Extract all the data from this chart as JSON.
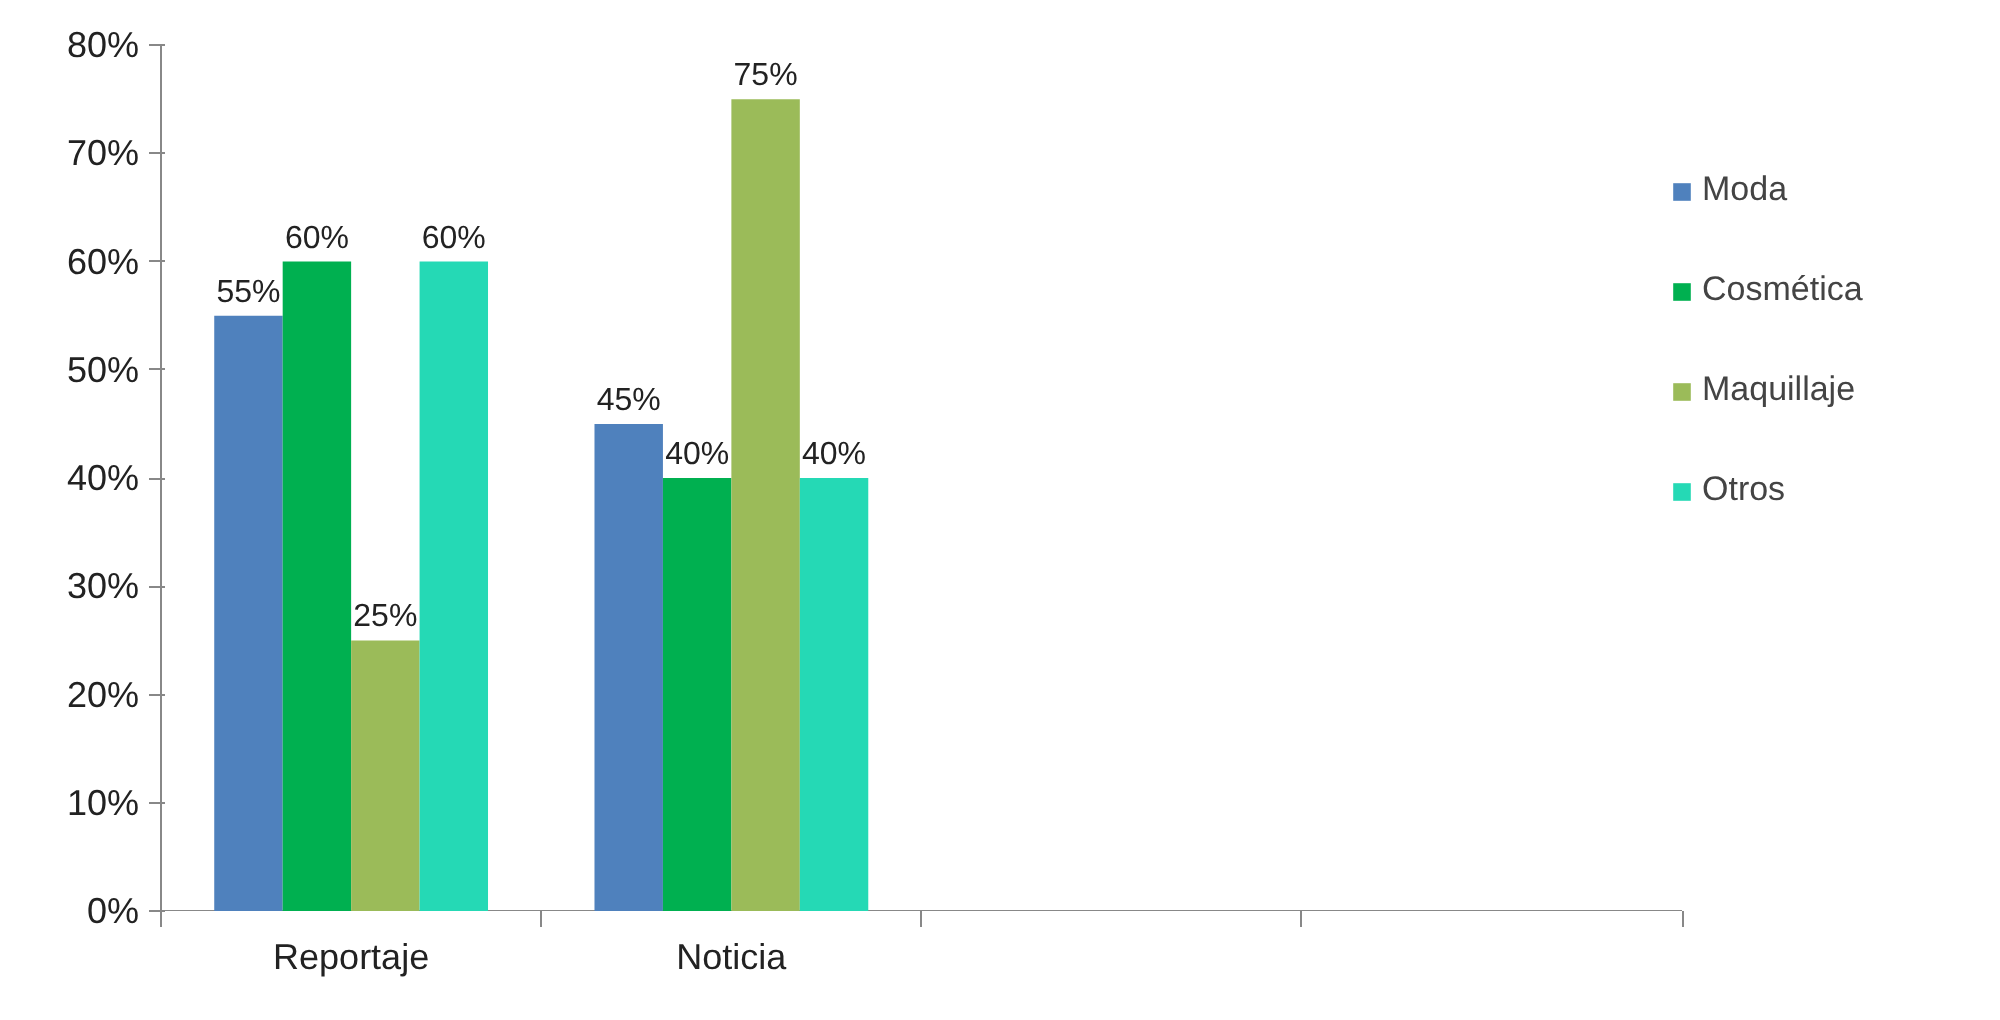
{
  "chart_data": {
    "type": "bar",
    "categories": [
      "Reportaje",
      "Noticia",
      null,
      null
    ],
    "series": [
      {
        "name": "Moda",
        "color": "#4f81bd",
        "values": [
          55,
          45,
          null,
          null
        ],
        "value_labels": [
          "55%",
          "45%",
          null,
          null
        ]
      },
      {
        "name": "Cosmética",
        "color": "#00b050",
        "values": [
          60,
          40,
          null,
          null
        ],
        "value_labels": [
          "60%",
          "40%",
          null,
          null
        ]
      },
      {
        "name": "Maquillaje",
        "color": "#9bbb59",
        "values": [
          25,
          75,
          null,
          null
        ],
        "value_labels": [
          "25%",
          "75%",
          null,
          null
        ]
      },
      {
        "name": "Otros",
        "color": "#25d9b5",
        "values": [
          60,
          40,
          null,
          null
        ],
        "value_labels": [
          "60%",
          "40%",
          null,
          null
        ]
      }
    ],
    "ylim": [
      0,
      80
    ],
    "yticks": [
      {
        "value": 0,
        "label": "0%"
      },
      {
        "value": 10,
        "label": "10%"
      },
      {
        "value": 20,
        "label": "20%"
      },
      {
        "value": 30,
        "label": "30%"
      },
      {
        "value": 40,
        "label": "40%"
      },
      {
        "value": 50,
        "label": "50%"
      },
      {
        "value": 60,
        "label": "60%"
      },
      {
        "value": 70,
        "label": "70%"
      },
      {
        "value": 80,
        "label": "80%"
      }
    ],
    "grid": false,
    "legend": "right"
  }
}
